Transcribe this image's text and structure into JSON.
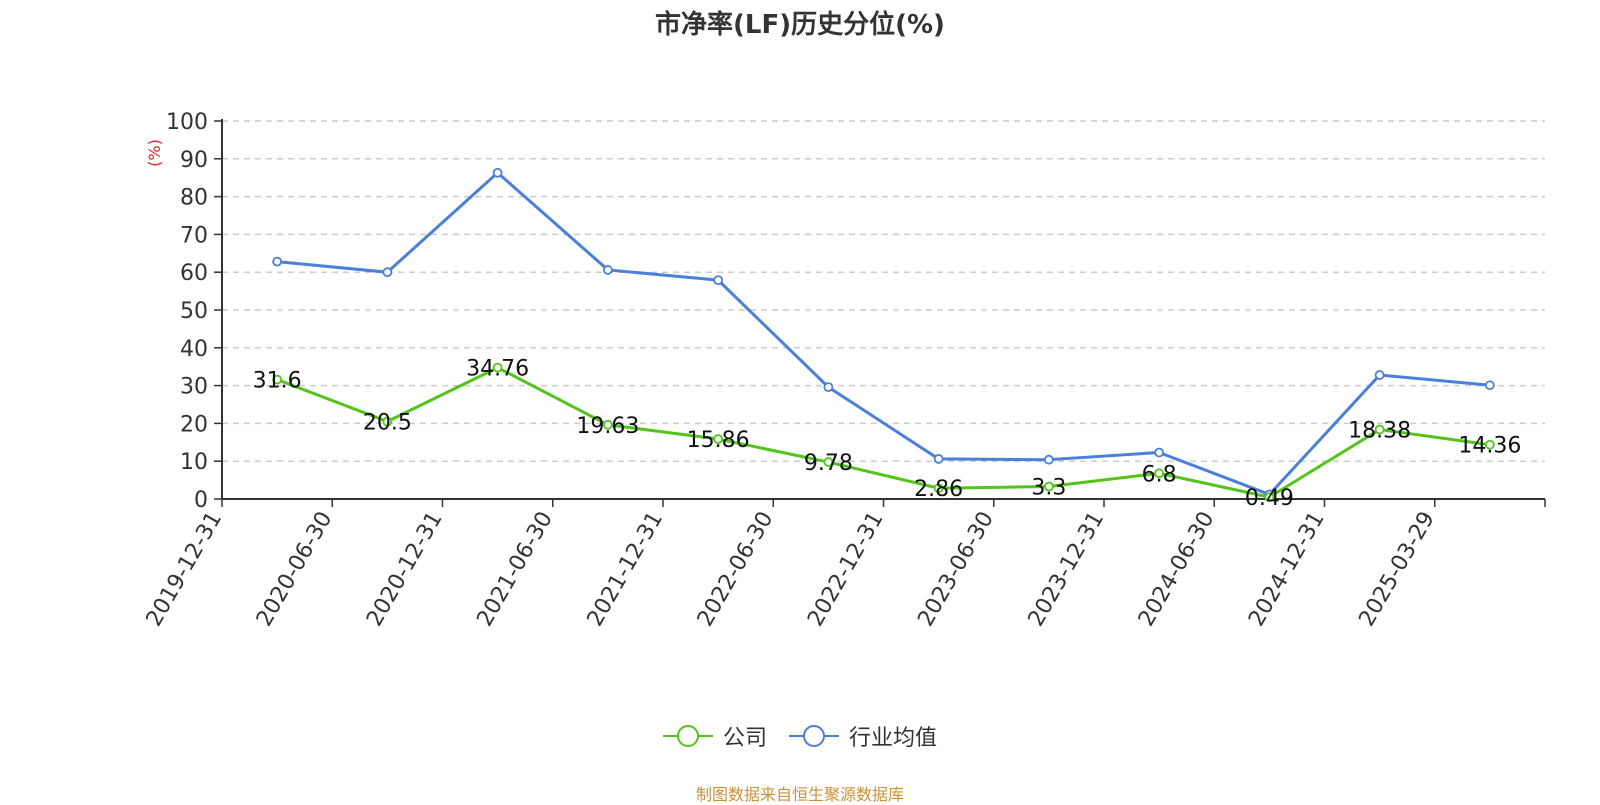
{
  "chart_data": {
    "type": "line",
    "title": "市净率(LF)历史分位(%)",
    "ylabel": "(%)",
    "xlabel": "",
    "ylim": [
      0,
      100
    ],
    "yticks": [
      0,
      10,
      20,
      30,
      40,
      50,
      60,
      70,
      80,
      90,
      100
    ],
    "grid": true,
    "legend_position": "bottom",
    "categories": [
      "2019-12-31",
      "2020-06-30",
      "2020-12-31",
      "2021-06-30",
      "2021-12-31",
      "2022-06-30",
      "2022-12-31",
      "2023-06-30",
      "2023-12-31",
      "2024-06-30",
      "2024-12-31",
      "2025-03-29"
    ],
    "series": [
      {
        "name": "公司",
        "color": "#52c41a",
        "values": [
          31.6,
          20.5,
          34.76,
          19.63,
          15.86,
          9.78,
          2.86,
          3.3,
          6.8,
          0.49,
          18.38,
          14.36
        ],
        "labels": [
          "31.6",
          "20.5",
          "34.76",
          "19.63",
          "15.86",
          "9.78",
          "2.86",
          "3.3",
          "6.8",
          "0.49",
          "18.38",
          "14.36"
        ]
      },
      {
        "name": "行业均值",
        "color": "#4a7fdb",
        "values": [
          62.8,
          60.0,
          86.3,
          60.6,
          57.9,
          29.6,
          10.6,
          10.4,
          12.3,
          1.2,
          32.8,
          30.1
        ]
      }
    ]
  },
  "source_note": "制图数据来自恒生聚源数据库"
}
